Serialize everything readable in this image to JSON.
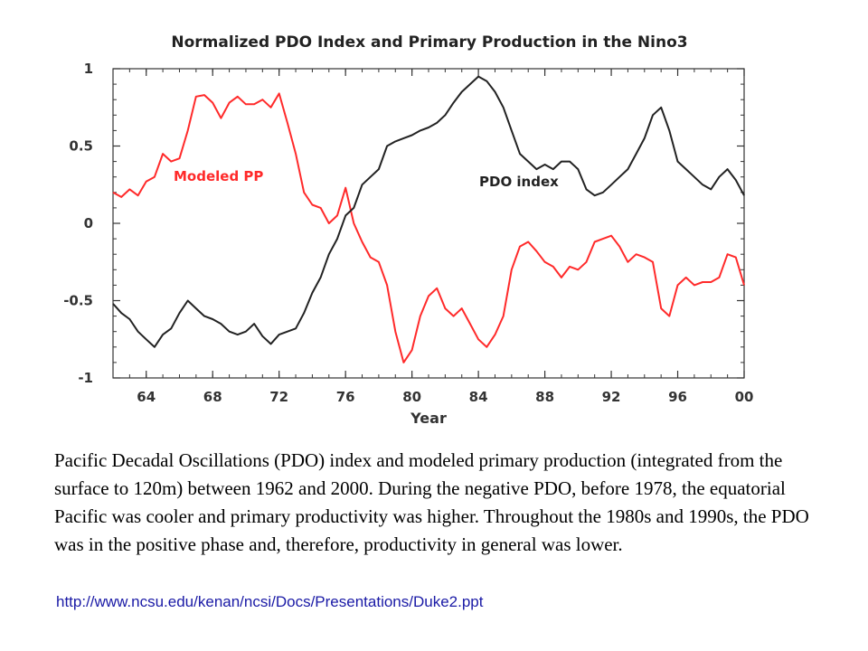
{
  "chart_data": {
    "type": "line",
    "title": "Normalized PDO Index and Primary Production in the Nino3",
    "xlabel": "Year",
    "ylabel": "",
    "xlim": [
      1962,
      2000
    ],
    "ylim": [
      -1,
      1
    ],
    "x_ticks": [
      1964,
      1968,
      1972,
      1976,
      1980,
      1984,
      1988,
      1992,
      1996,
      2000
    ],
    "x_tick_labels": [
      "64",
      "68",
      "72",
      "76",
      "80",
      "84",
      "88",
      "92",
      "96",
      "00"
    ],
    "y_ticks": [
      1,
      0.5,
      0,
      -0.5,
      -1
    ],
    "y_tick_labels": [
      "1",
      "0.5",
      "0",
      "-0.5",
      "-1"
    ],
    "grid": false,
    "series": [
      {
        "name": "Modeled PP",
        "color": "#ff2a2a",
        "x": [
          1962.0,
          1962.5,
          1963.0,
          1963.5,
          1964.0,
          1964.5,
          1965.0,
          1965.5,
          1966.0,
          1966.5,
          1967.0,
          1967.5,
          1968.0,
          1968.5,
          1969.0,
          1969.5,
          1970.0,
          1970.5,
          1971.0,
          1971.5,
          1972.0,
          1972.5,
          1973.0,
          1973.5,
          1974.0,
          1974.5,
          1975.0,
          1975.5,
          1976.0,
          1976.5,
          1977.0,
          1977.5,
          1978.0,
          1978.5,
          1979.0,
          1979.5,
          1980.0,
          1980.5,
          1981.0,
          1981.5,
          1982.0,
          1982.5,
          1983.0,
          1983.5,
          1984.0,
          1984.5,
          1985.0,
          1985.5,
          1986.0,
          1986.5,
          1987.0,
          1987.5,
          1988.0,
          1988.5,
          1989.0,
          1989.5,
          1990.0,
          1990.5,
          1991.0,
          1991.5,
          1992.0,
          1992.5,
          1993.0,
          1993.5,
          1994.0,
          1994.5,
          1995.0,
          1995.5,
          1996.0,
          1996.5,
          1997.0,
          1997.5,
          1998.0,
          1998.5,
          1999.0,
          1999.5,
          2000.0
        ],
        "values": [
          0.2,
          0.17,
          0.22,
          0.18,
          0.27,
          0.3,
          0.45,
          0.4,
          0.42,
          0.6,
          0.82,
          0.83,
          0.78,
          0.68,
          0.78,
          0.82,
          0.77,
          0.77,
          0.8,
          0.75,
          0.84,
          0.65,
          0.45,
          0.2,
          0.12,
          0.1,
          0.0,
          0.05,
          0.23,
          0.0,
          -0.12,
          -0.22,
          -0.25,
          -0.4,
          -0.7,
          -0.9,
          -0.82,
          -0.6,
          -0.47,
          -0.42,
          -0.55,
          -0.6,
          -0.55,
          -0.65,
          -0.75,
          -0.8,
          -0.72,
          -0.6,
          -0.3,
          -0.15,
          -0.12,
          -0.18,
          -0.25,
          -0.28,
          -0.35,
          -0.28,
          -0.3,
          -0.25,
          -0.12,
          -0.1,
          -0.08,
          -0.15,
          -0.25,
          -0.2,
          -0.22,
          -0.25,
          -0.55,
          -0.6,
          -0.4,
          -0.35,
          -0.4,
          -0.38,
          -0.38,
          -0.35,
          -0.2,
          -0.22,
          -0.4
        ]
      },
      {
        "name": "PDO index",
        "color": "#222222",
        "x": [
          1962.0,
          1962.5,
          1963.0,
          1963.5,
          1964.0,
          1964.5,
          1965.0,
          1965.5,
          1966.0,
          1966.5,
          1967.0,
          1967.5,
          1968.0,
          1968.5,
          1969.0,
          1969.5,
          1970.0,
          1970.5,
          1971.0,
          1971.5,
          1972.0,
          1972.5,
          1973.0,
          1973.5,
          1974.0,
          1974.5,
          1975.0,
          1975.5,
          1976.0,
          1976.5,
          1977.0,
          1977.5,
          1978.0,
          1978.5,
          1979.0,
          1979.5,
          1980.0,
          1980.5,
          1981.0,
          1981.5,
          1982.0,
          1982.5,
          1983.0,
          1983.5,
          1984.0,
          1984.5,
          1985.0,
          1985.5,
          1986.0,
          1986.5,
          1987.0,
          1987.5,
          1988.0,
          1988.5,
          1989.0,
          1989.5,
          1990.0,
          1990.5,
          1991.0,
          1991.5,
          1992.0,
          1992.5,
          1993.0,
          1993.5,
          1994.0,
          1994.5,
          1995.0,
          1995.5,
          1996.0,
          1996.5,
          1997.0,
          1997.5,
          1998.0,
          1998.5,
          1999.0,
          1999.5,
          2000.0
        ],
        "values": [
          -0.52,
          -0.58,
          -0.62,
          -0.7,
          -0.75,
          -0.8,
          -0.72,
          -0.68,
          -0.58,
          -0.5,
          -0.55,
          -0.6,
          -0.62,
          -0.65,
          -0.7,
          -0.72,
          -0.7,
          -0.65,
          -0.73,
          -0.78,
          -0.72,
          -0.7,
          -0.68,
          -0.58,
          -0.45,
          -0.35,
          -0.2,
          -0.1,
          0.05,
          0.1,
          0.25,
          0.3,
          0.35,
          0.5,
          0.53,
          0.55,
          0.57,
          0.6,
          0.62,
          0.65,
          0.7,
          0.78,
          0.85,
          0.9,
          0.95,
          0.92,
          0.85,
          0.75,
          0.6,
          0.45,
          0.4,
          0.35,
          0.38,
          0.35,
          0.4,
          0.4,
          0.35,
          0.22,
          0.18,
          0.2,
          0.25,
          0.3,
          0.35,
          0.45,
          0.55,
          0.7,
          0.75,
          0.6,
          0.4,
          0.35,
          0.3,
          0.25,
          0.22,
          0.3,
          0.35,
          0.28,
          0.18
        ]
      }
    ],
    "annotations": [
      "Modeled PP",
      "PDO index"
    ]
  },
  "caption": "Pacific Decadal Oscillations (PDO) index and modeled primary production (integrated from the surface to 120m) between 1962 and 2000. During the negative PDO, before 1978, the equatorial Pacific was cooler and primary productivity was higher. Throughout the 1980s and 1990s, the PDO was in the positive phase and, therefore, productivity in general was lower.",
  "source_url": "http://www.ncsu.edu/kenan/ncsi/Docs/Presentations/Duke2.ppt"
}
